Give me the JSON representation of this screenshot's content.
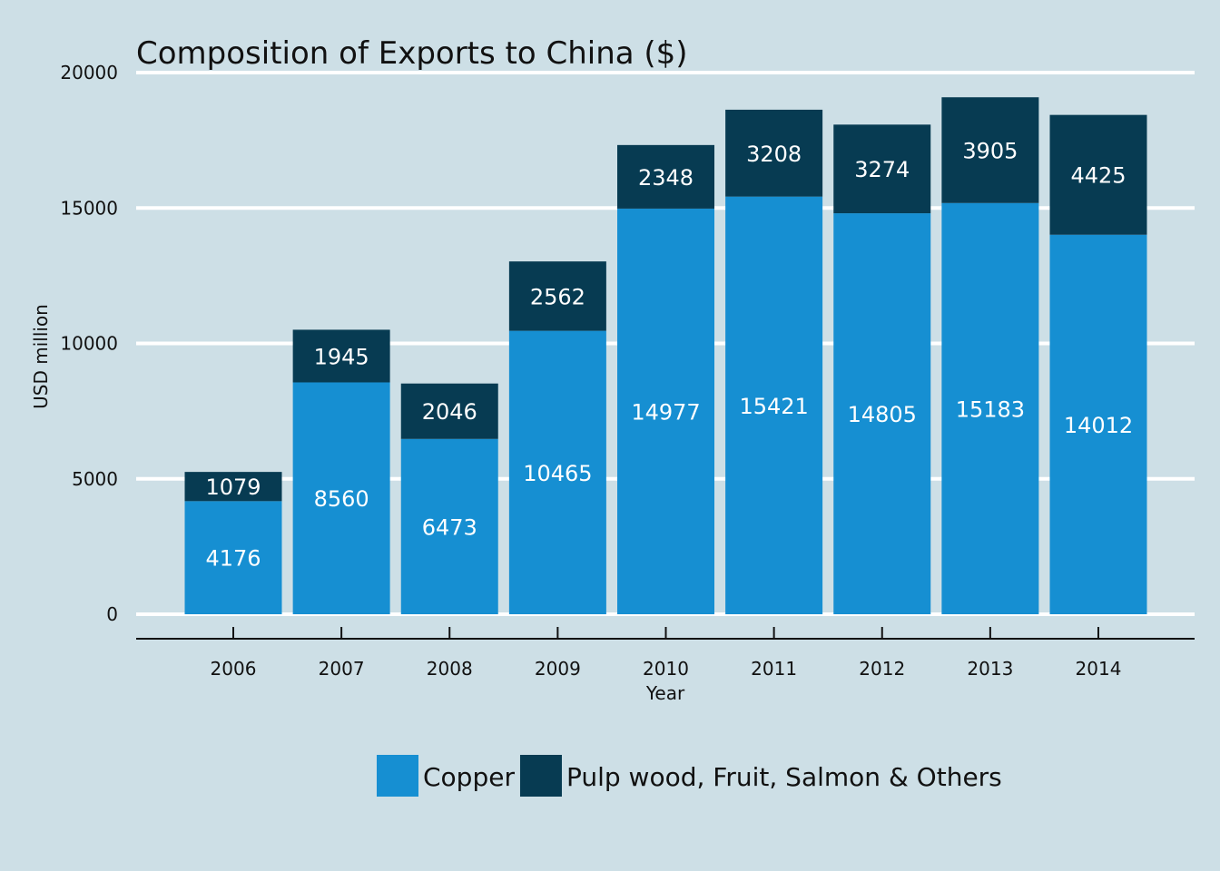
{
  "chart_data": {
    "type": "bar",
    "stacked": true,
    "title": "Composition of Exports to China ($)",
    "xlabel": "Year",
    "ylabel": "USD million",
    "categories": [
      "2006",
      "2007",
      "2008",
      "2009",
      "2010",
      "2011",
      "2012",
      "2013",
      "2014"
    ],
    "series": [
      {
        "name": "Copper",
        "color": "#168fd2",
        "values": [
          4176,
          8560,
          6473,
          10465,
          14977,
          15421,
          14805,
          15183,
          14012
        ]
      },
      {
        "name": "Pulp wood, Fruit, Salmon & Others",
        "color": "#073b52",
        "values": [
          1079,
          1945,
          2046,
          2562,
          2348,
          3208,
          3274,
          3905,
          4425
        ]
      }
    ],
    "ylim": [
      0,
      20000
    ],
    "yticks": [
      0,
      5000,
      10000,
      15000,
      20000
    ],
    "grid": true,
    "legend_position": "bottom",
    "background": "#cddfe6",
    "gridline_color": "#ffffff"
  }
}
